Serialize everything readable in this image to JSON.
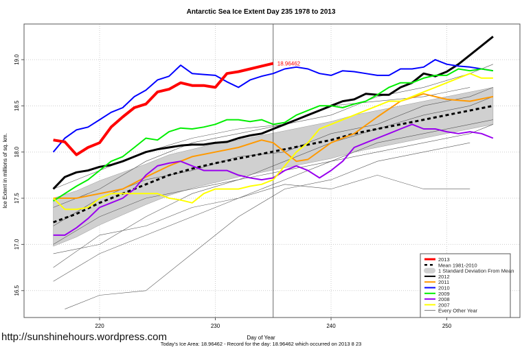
{
  "chart_data": {
    "type": "line",
    "title": "Antarctic Sea Ice Extent Day 235 1978 to 2013",
    "xlabel": "Day of Year",
    "ylabel": "Ice Extent in millions of sq. km.",
    "xlim": [
      214,
      256
    ],
    "ylim": [
      16.2,
      19.4
    ],
    "xticks": [
      220,
      230,
      240,
      250
    ],
    "yticks": [
      16.5,
      17.0,
      17.5,
      18.0,
      18.5,
      19.0
    ],
    "current_day": 235,
    "annotation": "18.96462",
    "subtitle": "Today's Ice Area: 18.96462  - Record for the day: 18.96462 which occurred on 2013 8 23",
    "grid": true,
    "legend_position": "bottom-right",
    "mean": {
      "name": "Mean 1981-2010",
      "x": [
        216,
        218,
        220,
        222,
        224,
        226,
        228,
        230,
        232,
        234,
        236,
        238,
        240,
        242,
        244,
        246,
        248,
        250,
        252,
        254
      ],
      "y": [
        17.24,
        17.33,
        17.45,
        17.55,
        17.65,
        17.75,
        17.82,
        17.88,
        17.93,
        17.98,
        18.03,
        18.08,
        18.13,
        18.2,
        18.25,
        18.3,
        18.35,
        18.4,
        18.45,
        18.5
      ],
      "sd": [
        0.26,
        0.25,
        0.24,
        0.23,
        0.22,
        0.22,
        0.21,
        0.21,
        0.2,
        0.2,
        0.2,
        0.2,
        0.2,
        0.2,
        0.2,
        0.2,
        0.2,
        0.2,
        0.2,
        0.2
      ]
    },
    "sd_label": "1 Standard Deviation From Mean",
    "other_label": "Every Other Year",
    "series": [
      {
        "name": "2012",
        "color": "#000000",
        "width": 3,
        "x": [
          216,
          217,
          218,
          219,
          220,
          221,
          222,
          223,
          224,
          225,
          226,
          227,
          228,
          229,
          230,
          231,
          232,
          233,
          234,
          235,
          236,
          237,
          238,
          239,
          240,
          241,
          242,
          243,
          244,
          245,
          246,
          247,
          248,
          249,
          250,
          251,
          252,
          253,
          254
        ],
        "y": [
          17.6,
          17.73,
          17.78,
          17.8,
          17.84,
          17.86,
          17.9,
          17.95,
          18.0,
          18.03,
          18.05,
          18.07,
          18.08,
          18.08,
          18.1,
          18.11,
          18.15,
          18.18,
          18.2,
          18.25,
          18.3,
          18.35,
          18.4,
          18.45,
          18.5,
          18.55,
          18.57,
          18.63,
          18.62,
          18.62,
          18.7,
          18.75,
          18.85,
          18.82,
          18.87,
          18.95,
          19.05,
          19.15,
          19.25
        ]
      },
      {
        "name": "2011",
        "color": "#FF9900",
        "width": 2,
        "x": [
          216,
          218,
          220,
          222,
          224,
          226,
          228,
          230,
          232,
          234,
          235,
          236,
          237,
          238,
          240,
          242,
          244,
          246,
          248,
          250,
          252,
          254
        ],
        "y": [
          17.5,
          17.5,
          17.55,
          17.6,
          17.73,
          17.85,
          17.95,
          18.0,
          18.05,
          18.13,
          18.1,
          18.0,
          17.9,
          17.92,
          18.1,
          18.2,
          18.38,
          18.55,
          18.63,
          18.57,
          18.55,
          18.6
        ]
      },
      {
        "name": "2010",
        "color": "#0000FF",
        "width": 2,
        "x": [
          216,
          217,
          218,
          219,
          220,
          221,
          222,
          223,
          224,
          225,
          226,
          227,
          228,
          229,
          230,
          231,
          232,
          233,
          234,
          235,
          236,
          237,
          238,
          239,
          240,
          241,
          242,
          243,
          244,
          245,
          246,
          247,
          248,
          249,
          250,
          251,
          252,
          253,
          254
        ],
        "y": [
          18.0,
          18.15,
          18.24,
          18.27,
          18.35,
          18.43,
          18.48,
          18.6,
          18.67,
          18.78,
          18.82,
          18.94,
          18.85,
          18.84,
          18.83,
          18.76,
          18.7,
          18.78,
          18.82,
          18.85,
          18.9,
          18.92,
          18.9,
          18.85,
          18.83,
          18.88,
          18.87,
          18.85,
          18.83,
          18.83,
          18.9,
          18.9,
          18.92,
          19.0,
          18.95,
          18.93,
          18.92,
          18.9,
          18.88
        ]
      },
      {
        "name": "2009",
        "color": "#00EE00",
        "width": 2,
        "x": [
          216,
          217,
          218,
          219,
          220,
          221,
          222,
          223,
          224,
          225,
          226,
          227,
          228,
          229,
          230,
          231,
          232,
          233,
          234,
          235,
          236,
          237,
          238,
          239,
          240,
          241,
          242,
          243,
          244,
          245,
          246,
          247,
          248,
          249,
          250,
          251,
          252,
          253,
          254
        ],
        "y": [
          17.47,
          17.55,
          17.63,
          17.7,
          17.8,
          17.9,
          17.95,
          18.05,
          18.15,
          18.13,
          18.22,
          18.26,
          18.25,
          18.27,
          18.3,
          18.35,
          18.35,
          18.33,
          18.35,
          18.3,
          18.32,
          18.4,
          18.45,
          18.5,
          18.5,
          18.48,
          18.52,
          18.55,
          18.62,
          18.7,
          18.75,
          18.75,
          18.8,
          18.83,
          18.83,
          18.9,
          18.88,
          18.9,
          18.88
        ]
      },
      {
        "name": "2008",
        "color": "#9900EE",
        "width": 2,
        "x": [
          216,
          217,
          218,
          219,
          220,
          221,
          222,
          223,
          224,
          225,
          226,
          227,
          228,
          229,
          230,
          231,
          232,
          233,
          234,
          235,
          236,
          237,
          238,
          239,
          240,
          241,
          242,
          243,
          244,
          245,
          246,
          247,
          248,
          249,
          250,
          251,
          252,
          253,
          254
        ],
        "y": [
          17.1,
          17.1,
          17.18,
          17.28,
          17.4,
          17.45,
          17.5,
          17.6,
          17.75,
          17.85,
          17.88,
          17.9,
          17.85,
          17.8,
          17.8,
          17.8,
          17.75,
          17.72,
          17.7,
          17.72,
          17.8,
          17.85,
          17.8,
          17.72,
          17.8,
          17.9,
          18.05,
          18.1,
          18.15,
          18.2,
          18.25,
          18.3,
          18.25,
          18.25,
          18.22,
          18.2,
          18.22,
          18.2,
          18.15
        ]
      },
      {
        "name": "2007",
        "color": "#FFFF00",
        "width": 2,
        "x": [
          216,
          217,
          218,
          219,
          220,
          221,
          222,
          223,
          224,
          225,
          226,
          227,
          228,
          229,
          230,
          231,
          232,
          233,
          234,
          235,
          236,
          237,
          238,
          239,
          240,
          241,
          242,
          243,
          244,
          245,
          246,
          247,
          248,
          249,
          250,
          251,
          252,
          253,
          254
        ],
        "y": [
          17.5,
          17.38,
          17.38,
          17.4,
          17.5,
          17.55,
          17.55,
          17.55,
          17.55,
          17.55,
          17.5,
          17.48,
          17.45,
          17.55,
          17.6,
          17.6,
          17.6,
          17.63,
          17.65,
          17.7,
          17.85,
          18.0,
          18.1,
          18.25,
          18.3,
          18.35,
          18.4,
          18.45,
          18.5,
          18.55,
          18.55,
          18.6,
          18.65,
          18.7,
          18.75,
          18.8,
          18.85,
          18.8,
          18.8
        ]
      },
      {
        "name": "2013",
        "color": "#FF0000",
        "width": 4,
        "x": [
          216,
          217,
          218,
          219,
          220,
          221,
          222,
          223,
          224,
          225,
          226,
          227,
          228,
          229,
          230,
          231,
          232,
          233,
          234,
          235
        ],
        "y": [
          18.13,
          18.11,
          17.97,
          18.05,
          18.1,
          18.27,
          18.38,
          18.48,
          18.52,
          18.65,
          18.68,
          18.75,
          18.72,
          18.72,
          18.7,
          18.85,
          18.87,
          18.9,
          18.93,
          18.96
        ]
      }
    ],
    "other_years": [
      {
        "x": [
          216,
          220,
          224,
          228,
          232,
          236,
          240,
          244,
          248,
          252,
          254
        ],
        "y": [
          16.6,
          16.9,
          17.1,
          17.3,
          17.5,
          17.7,
          17.9,
          18.0,
          18.1,
          18.2,
          18.3
        ]
      },
      {
        "x": [
          216,
          220,
          224,
          228,
          232,
          236,
          240,
          244,
          248,
          252,
          254
        ],
        "y": [
          17.0,
          17.3,
          17.5,
          17.6,
          17.7,
          17.9,
          18.1,
          18.25,
          18.4,
          18.5,
          18.6
        ]
      },
      {
        "x": [
          216,
          220,
          224,
          228,
          232,
          236,
          240,
          244,
          248,
          252,
          254
        ],
        "y": [
          17.4,
          17.6,
          17.9,
          18.1,
          18.2,
          18.3,
          18.4,
          18.6,
          18.7,
          18.85,
          18.95
        ]
      },
      {
        "x": [
          217,
          220,
          224,
          228,
          232,
          236,
          240,
          244,
          248,
          252
        ],
        "y": [
          16.3,
          16.45,
          16.5,
          16.9,
          17.3,
          17.6,
          17.7,
          17.9,
          18.0,
          18.1
        ]
      },
      {
        "x": [
          216,
          220,
          224,
          228,
          232,
          236,
          240,
          244,
          248,
          252,
          254
        ],
        "y": [
          17.2,
          17.5,
          17.7,
          17.8,
          17.95,
          18.0,
          18.2,
          18.3,
          18.5,
          18.6,
          18.7
        ]
      },
      {
        "x": [
          216,
          220,
          224,
          228,
          232,
          236,
          240,
          244,
          248,
          252,
          254
        ],
        "y": [
          16.9,
          17.0,
          17.3,
          17.55,
          17.7,
          17.8,
          17.9,
          18.1,
          18.2,
          18.3,
          18.35
        ]
      },
      {
        "x": [
          216,
          220,
          224,
          228,
          232,
          236,
          240,
          244,
          248,
          252
        ],
        "y": [
          17.6,
          17.8,
          18.0,
          18.15,
          18.25,
          18.3,
          18.5,
          18.55,
          18.6,
          18.7
        ]
      },
      {
        "x": [
          216,
          220,
          224,
          228,
          232,
          236,
          240,
          244,
          248,
          252
        ],
        "y": [
          16.75,
          17.1,
          17.2,
          17.4,
          17.5,
          17.65,
          17.6,
          17.75,
          17.6,
          17.6
        ]
      }
    ]
  },
  "footer": {
    "url": "http://sunshinehours.wordpress.com"
  }
}
